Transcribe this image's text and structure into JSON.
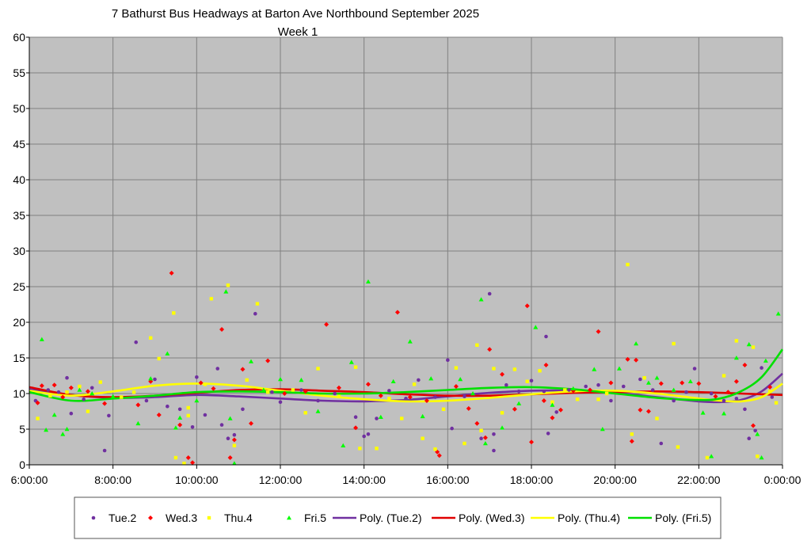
{
  "chart_data": {
    "type": "scatter",
    "title": "7 Bathurst Bus Headways at Barton Ave Northbound September 2025",
    "subtitle": "Week 1",
    "xlabel": "",
    "ylabel": "",
    "x_range_hours": [
      6,
      24
    ],
    "ylim": [
      0,
      60
    ],
    "y_ticks": [
      "0",
      "5",
      "10",
      "15",
      "20",
      "25",
      "30",
      "35",
      "40",
      "45",
      "50",
      "55",
      "60"
    ],
    "x_ticks": [
      "6:00:00",
      "8:00:00",
      "10:00:00",
      "12:00:00",
      "14:00:00",
      "16:00:00",
      "18:00:00",
      "20:00:00",
      "22:00:00",
      "0:00:00"
    ],
    "grid": true,
    "plot_background": "#c0c0c0",
    "legend_position": "bottom",
    "series": [
      {
        "name": "Tue.2",
        "marker": "circle",
        "color": "#7030a0",
        "points": [
          [
            6.15,
            9
          ],
          [
            6.45,
            10.5
          ],
          [
            6.7,
            10.2
          ],
          [
            6.9,
            12.2
          ],
          [
            7.0,
            7.2
          ],
          [
            7.3,
            9.2
          ],
          [
            7.5,
            10.8
          ],
          [
            7.8,
            2
          ],
          [
            7.9,
            6.9
          ],
          [
            8.55,
            17.2
          ],
          [
            8.8,
            9
          ],
          [
            9.0,
            12
          ],
          [
            9.3,
            8.2
          ],
          [
            9.6,
            7.8
          ],
          [
            9.9,
            5.3
          ],
          [
            10.0,
            12.3
          ],
          [
            10.2,
            7
          ],
          [
            10.5,
            13.5
          ],
          [
            10.6,
            5.6
          ],
          [
            10.75,
            3.7
          ],
          [
            10.9,
            4.2
          ],
          [
            11.1,
            7.8
          ],
          [
            11.4,
            21.2
          ],
          [
            11.8,
            10.2
          ],
          [
            12.0,
            8.8
          ],
          [
            12.5,
            10.5
          ],
          [
            12.9,
            9
          ],
          [
            13.3,
            10
          ],
          [
            13.8,
            6.7
          ],
          [
            14.0,
            4
          ],
          [
            14.1,
            4.3
          ],
          [
            14.3,
            6.5
          ],
          [
            14.6,
            10.4
          ],
          [
            15.0,
            9.3
          ],
          [
            15.3,
            11.9
          ],
          [
            15.7,
            9.5
          ],
          [
            16.0,
            14.7
          ],
          [
            16.1,
            5.1
          ],
          [
            16.4,
            9.6
          ],
          [
            16.8,
            3.7
          ],
          [
            17.0,
            24
          ],
          [
            17.1,
            2
          ],
          [
            17.1,
            4.3
          ],
          [
            17.4,
            11.2
          ],
          [
            17.7,
            10.3
          ],
          [
            18.0,
            11.8
          ],
          [
            18.3,
            10.3
          ],
          [
            18.35,
            18
          ],
          [
            18.4,
            4.4
          ],
          [
            18.6,
            7.4
          ],
          [
            18.9,
            10.5
          ],
          [
            19.3,
            11
          ],
          [
            19.6,
            11.2
          ],
          [
            19.9,
            9
          ],
          [
            20.2,
            11
          ],
          [
            20.6,
            12
          ],
          [
            20.9,
            10.5
          ],
          [
            21.1,
            3
          ],
          [
            21.4,
            9
          ],
          [
            21.7,
            10.2
          ],
          [
            21.9,
            13.5
          ],
          [
            22.3,
            10
          ],
          [
            22.6,
            9
          ],
          [
            22.9,
            9.3
          ],
          [
            23.1,
            7.8
          ],
          [
            23.2,
            3.7
          ],
          [
            23.35,
            4.8
          ],
          [
            23.5,
            13.6
          ],
          [
            23.75,
            9.5
          ]
        ]
      },
      {
        "name": "Wed.3",
        "marker": "diamond",
        "color": "#ff0000",
        "points": [
          [
            6.2,
            8.7
          ],
          [
            6.3,
            11.1
          ],
          [
            6.6,
            11.2
          ],
          [
            6.8,
            9.5
          ],
          [
            7.0,
            10.8
          ],
          [
            7.4,
            10.3
          ],
          [
            7.8,
            8.6
          ],
          [
            8.6,
            8.4
          ],
          [
            8.9,
            11.7
          ],
          [
            9.1,
            7
          ],
          [
            9.4,
            26.9
          ],
          [
            9.6,
            5.6
          ],
          [
            9.8,
            1
          ],
          [
            9.9,
            0.3
          ],
          [
            10.1,
            11.5
          ],
          [
            10.4,
            10.7
          ],
          [
            10.6,
            19
          ],
          [
            10.8,
            1
          ],
          [
            10.9,
            3.5
          ],
          [
            11.1,
            13.4
          ],
          [
            11.3,
            5.8
          ],
          [
            11.7,
            14.6
          ],
          [
            12.1,
            10
          ],
          [
            12.6,
            10.3
          ],
          [
            13.1,
            19.7
          ],
          [
            13.4,
            10.8
          ],
          [
            13.8,
            5.2
          ],
          [
            14.1,
            11.3
          ],
          [
            14.4,
            9.7
          ],
          [
            14.8,
            21.4
          ],
          [
            15.1,
            9.5
          ],
          [
            15.5,
            9
          ],
          [
            15.75,
            1.8
          ],
          [
            15.8,
            1.3
          ],
          [
            16.2,
            11
          ],
          [
            16.5,
            7.9
          ],
          [
            16.7,
            5.8
          ],
          [
            16.9,
            3.8
          ],
          [
            17.0,
            16.2
          ],
          [
            17.3,
            12.7
          ],
          [
            17.6,
            7.8
          ],
          [
            17.9,
            22.3
          ],
          [
            18.0,
            3.2
          ],
          [
            18.3,
            9
          ],
          [
            18.35,
            14
          ],
          [
            18.5,
            6.6
          ],
          [
            18.7,
            7.7
          ],
          [
            19.0,
            10.4
          ],
          [
            19.4,
            10.5
          ],
          [
            19.6,
            18.7
          ],
          [
            19.9,
            11.5
          ],
          [
            20.3,
            14.8
          ],
          [
            20.4,
            3.3
          ],
          [
            20.5,
            14.7
          ],
          [
            20.6,
            7.7
          ],
          [
            20.8,
            7.5
          ],
          [
            21.1,
            11.4
          ],
          [
            21.6,
            11.5
          ],
          [
            22.0,
            11.4
          ],
          [
            22.4,
            9.6
          ],
          [
            22.7,
            10.2
          ],
          [
            22.9,
            11.7
          ],
          [
            23.1,
            14
          ],
          [
            23.3,
            5.5
          ],
          [
            23.7,
            10.9
          ]
        ]
      },
      {
        "name": "Thu.4",
        "marker": "square",
        "color": "#ffff00",
        "points": [
          [
            6.2,
            6.5
          ],
          [
            6.5,
            9.7
          ],
          [
            6.9,
            10.2
          ],
          [
            7.2,
            11
          ],
          [
            7.4,
            7.5
          ],
          [
            7.7,
            11.6
          ],
          [
            8.2,
            9.5
          ],
          [
            8.5,
            10.2
          ],
          [
            8.9,
            17.8
          ],
          [
            9.1,
            14.9
          ],
          [
            9.45,
            21.3
          ],
          [
            9.5,
            1
          ],
          [
            9.7,
            0.2
          ],
          [
            9.8,
            6.9
          ],
          [
            9.8,
            8
          ],
          [
            10.2,
            11.3
          ],
          [
            10.35,
            23.3
          ],
          [
            10.75,
            25.2
          ],
          [
            10.9,
            2.7
          ],
          [
            11.2,
            11.9
          ],
          [
            11.45,
            22.6
          ],
          [
            11.7,
            10.2
          ],
          [
            12.3,
            10.5
          ],
          [
            12.6,
            7.3
          ],
          [
            12.9,
            13.5
          ],
          [
            13.4,
            9.6
          ],
          [
            13.8,
            13.7
          ],
          [
            13.9,
            2.3
          ],
          [
            14.3,
            2.3
          ],
          [
            14.6,
            9.3
          ],
          [
            14.9,
            6.5
          ],
          [
            15.2,
            11.3
          ],
          [
            15.4,
            3.7
          ],
          [
            15.7,
            2.2
          ],
          [
            15.9,
            7.8
          ],
          [
            16.2,
            13.6
          ],
          [
            16.4,
            3
          ],
          [
            16.7,
            16.8
          ],
          [
            16.8,
            4.8
          ],
          [
            17.1,
            13.5
          ],
          [
            17.3,
            7.3
          ],
          [
            17.6,
            13.4
          ],
          [
            17.9,
            11.7
          ],
          [
            18.2,
            13.2
          ],
          [
            18.5,
            8.8
          ],
          [
            18.8,
            10.5
          ],
          [
            19.1,
            9.2
          ],
          [
            19.6,
            9.2
          ],
          [
            19.8,
            10
          ],
          [
            20.3,
            28.1
          ],
          [
            20.4,
            4.3
          ],
          [
            20.7,
            12.2
          ],
          [
            21.0,
            6.5
          ],
          [
            21.4,
            17
          ],
          [
            21.5,
            2.5
          ],
          [
            22.2,
            1
          ],
          [
            22.6,
            12.5
          ],
          [
            22.9,
            17.4
          ],
          [
            23.3,
            16.5
          ],
          [
            23.4,
            1.2
          ],
          [
            23.7,
            10.3
          ],
          [
            23.85,
            8.7
          ]
        ]
      },
      {
        "name": "Fri.5",
        "marker": "triangle",
        "color": "#00ff00",
        "points": [
          [
            6.3,
            17.6
          ],
          [
            6.4,
            4.9
          ],
          [
            6.6,
            7
          ],
          [
            6.8,
            4.3
          ],
          [
            6.9,
            5
          ],
          [
            7.2,
            10.5
          ],
          [
            7.5,
            10
          ],
          [
            8.0,
            9.6
          ],
          [
            8.6,
            5.8
          ],
          [
            8.9,
            12.1
          ],
          [
            9.3,
            15.6
          ],
          [
            9.5,
            5.2
          ],
          [
            9.6,
            6.6
          ],
          [
            10.0,
            9
          ],
          [
            10.7,
            24.3
          ],
          [
            10.8,
            6.5
          ],
          [
            10.9,
            0.2
          ],
          [
            11.3,
            14.5
          ],
          [
            11.6,
            10.5
          ],
          [
            12.0,
            12
          ],
          [
            12.5,
            11.9
          ],
          [
            12.9,
            7.5
          ],
          [
            13.5,
            2.7
          ],
          [
            13.7,
            14.4
          ],
          [
            14.1,
            25.7
          ],
          [
            14.4,
            6.7
          ],
          [
            14.7,
            11.7
          ],
          [
            15.1,
            17.3
          ],
          [
            15.4,
            6.8
          ],
          [
            15.6,
            12.1
          ],
          [
            16.3,
            12
          ],
          [
            16.6,
            10
          ],
          [
            16.8,
            23.2
          ],
          [
            16.9,
            3
          ],
          [
            17.3,
            5.2
          ],
          [
            17.7,
            8.6
          ],
          [
            18.1,
            19.3
          ],
          [
            18.5,
            8.4
          ],
          [
            19.0,
            10.7
          ],
          [
            19.5,
            13.4
          ],
          [
            19.7,
            5
          ],
          [
            20.1,
            13.5
          ],
          [
            20.5,
            17
          ],
          [
            20.8,
            11.5
          ],
          [
            21.0,
            12.2
          ],
          [
            21.4,
            10.5
          ],
          [
            21.8,
            11.7
          ],
          [
            22.1,
            7.3
          ],
          [
            22.3,
            1.2
          ],
          [
            22.6,
            7.2
          ],
          [
            22.9,
            15
          ],
          [
            23.2,
            16.9
          ],
          [
            23.4,
            4.3
          ],
          [
            23.5,
            1
          ],
          [
            23.6,
            14.6
          ],
          [
            23.9,
            21.2
          ]
        ]
      }
    ],
    "trendlines": [
      {
        "name": "Poly. (Tue.2)",
        "color": "#7030a0",
        "x": [
          6,
          7,
          8,
          9,
          10,
          11,
          12,
          13,
          14,
          15,
          16,
          17,
          18,
          19,
          20,
          21,
          22,
          22.5,
          23,
          23.5,
          24
        ],
        "y": [
          10.6,
          9.8,
          9.4,
          9.5,
          9.8,
          9.6,
          9.3,
          9,
          8.9,
          9.1,
          9.6,
          10.1,
          10.4,
          10.4,
          10.1,
          9.5,
          8.9,
          8.8,
          9.1,
          10.3,
          12.8
        ]
      },
      {
        "name": "Poly. (Wed.3)",
        "color": "#e00000",
        "x": [
          6,
          7,
          8,
          9,
          10,
          11,
          12,
          13,
          14,
          15,
          16,
          17,
          18,
          19,
          20,
          21,
          22,
          23,
          24
        ],
        "y": [
          10.9,
          9.8,
          9.5,
          9.7,
          10.1,
          10.5,
          10.6,
          10.4,
          10.2,
          9.9,
          9.7,
          9.7,
          9.9,
          10.1,
          10.2,
          10.3,
          10.2,
          10,
          9.8
        ]
      },
      {
        "name": "Poly. (Thu.4)",
        "color": "#ffff00",
        "x": [
          6,
          7,
          8,
          9,
          10,
          11,
          12,
          13,
          14,
          15,
          16,
          17,
          18,
          19,
          20,
          21,
          22,
          22.5,
          23,
          23.5,
          24
        ],
        "y": [
          10.4,
          9.7,
          10.3,
          11.1,
          11.4,
          11.1,
          10.4,
          9.7,
          9.2,
          8.9,
          9,
          9.4,
          9.9,
          10.3,
          10.4,
          10,
          9.3,
          9,
          8.9,
          9.5,
          11.4
        ]
      },
      {
        "name": "Poly. (Fri.5)",
        "color": "#00e000",
        "x": [
          6,
          7,
          8,
          9,
          10,
          11,
          12,
          13,
          14,
          15,
          16,
          17,
          18,
          19,
          20,
          21,
          22,
          22.5,
          23,
          23.5,
          24
        ],
        "y": [
          10.2,
          9,
          9.3,
          9.7,
          10.2,
          10.3,
          10.2,
          10,
          10,
          10.2,
          10.5,
          10.8,
          10.9,
          10.6,
          10,
          9.4,
          9.1,
          9.3,
          10.3,
          12.3,
          16.2
        ]
      }
    ]
  }
}
